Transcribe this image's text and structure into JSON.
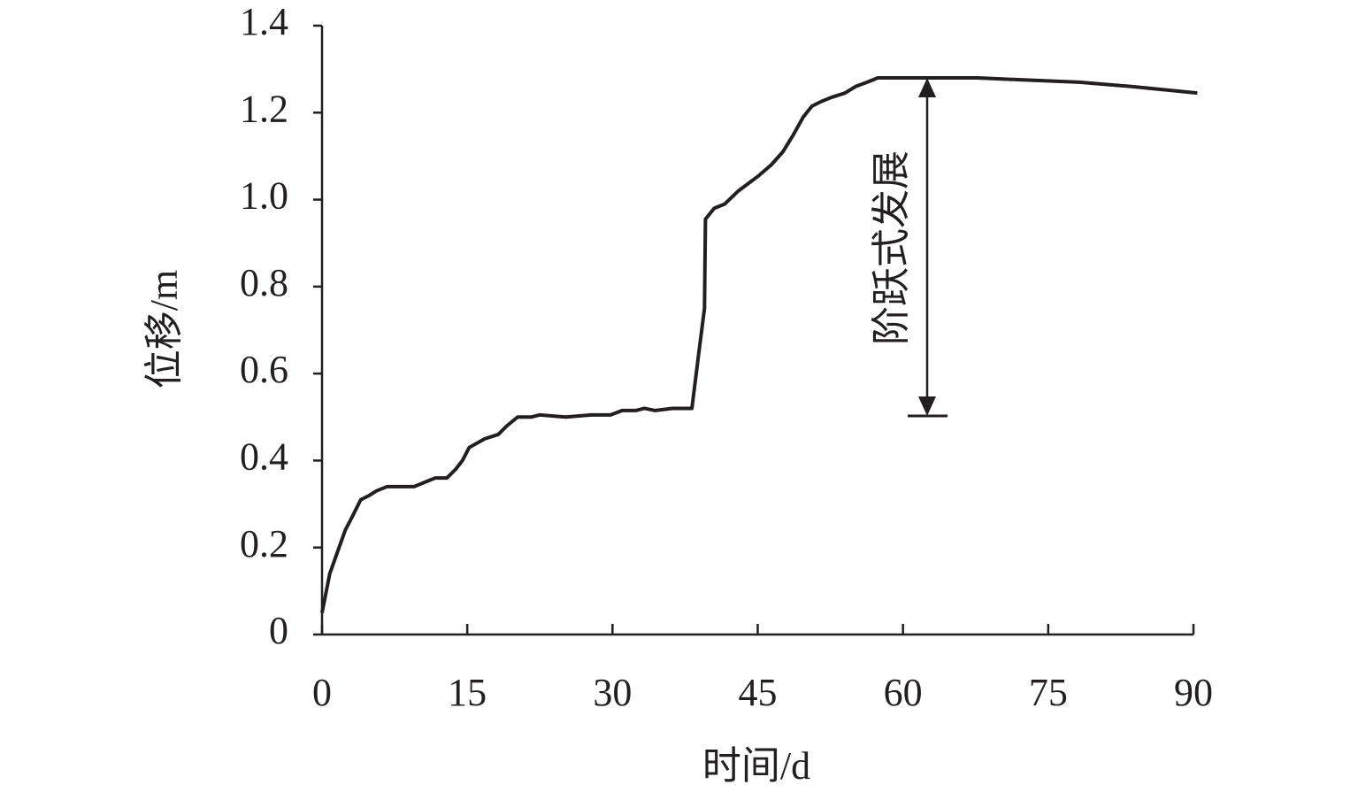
{
  "chart_data": {
    "type": "line",
    "x_label": "时间/d",
    "y_label": "位移/m",
    "annotation": "阶跃式发展",
    "x": [
      0,
      0.8,
      2.4,
      3.1,
      4.0,
      4.9,
      5.6,
      6.7,
      7.4,
      8.3,
      9.5,
      10.6,
      11.7,
      12.9,
      13.8,
      14.5,
      15.2,
      16.8,
      18.2,
      19.1,
      20.2,
      21.6,
      22.5,
      25.2,
      27.8,
      29.8,
      31.0,
      32.4,
      33.3,
      34.4,
      36.2,
      38.2,
      38.9,
      39.5,
      39.6,
      40.5,
      41.6,
      43.0,
      43.9,
      45.1,
      46.4,
      47.6,
      48.7,
      49.7,
      50.6,
      51.5,
      52.6,
      54.0,
      55.1,
      56.3,
      57.4,
      60.9,
      67.7,
      72.7,
      78.2,
      83.6,
      90.4
    ],
    "values": [
      0.05,
      0.14,
      0.24,
      0.27,
      0.31,
      0.32,
      0.33,
      0.34,
      0.34,
      0.34,
      0.34,
      0.35,
      0.36,
      0.36,
      0.38,
      0.4,
      0.43,
      0.45,
      0.46,
      0.48,
      0.5,
      0.5,
      0.505,
      0.5,
      0.505,
      0.505,
      0.515,
      0.515,
      0.52,
      0.515,
      0.52,
      0.52,
      0.645,
      0.75,
      0.955,
      0.98,
      0.99,
      1.02,
      1.035,
      1.055,
      1.08,
      1.11,
      1.15,
      1.19,
      1.215,
      1.225,
      1.235,
      1.245,
      1.26,
      1.27,
      1.28,
      1.28,
      1.28,
      1.275,
      1.27,
      1.26,
      1.245
    ],
    "color": "#231f20",
    "xlim": [
      0,
      90
    ],
    "xticks": [
      0,
      15,
      30,
      45,
      60,
      75,
      90
    ],
    "ylim": [
      0,
      1.4
    ],
    "yticks": [
      0,
      0.2,
      0.4,
      0.6,
      0.8,
      {
        "value": 1,
        "label": "1.0"
      },
      1.2,
      1.4
    ],
    "grid": false
  }
}
